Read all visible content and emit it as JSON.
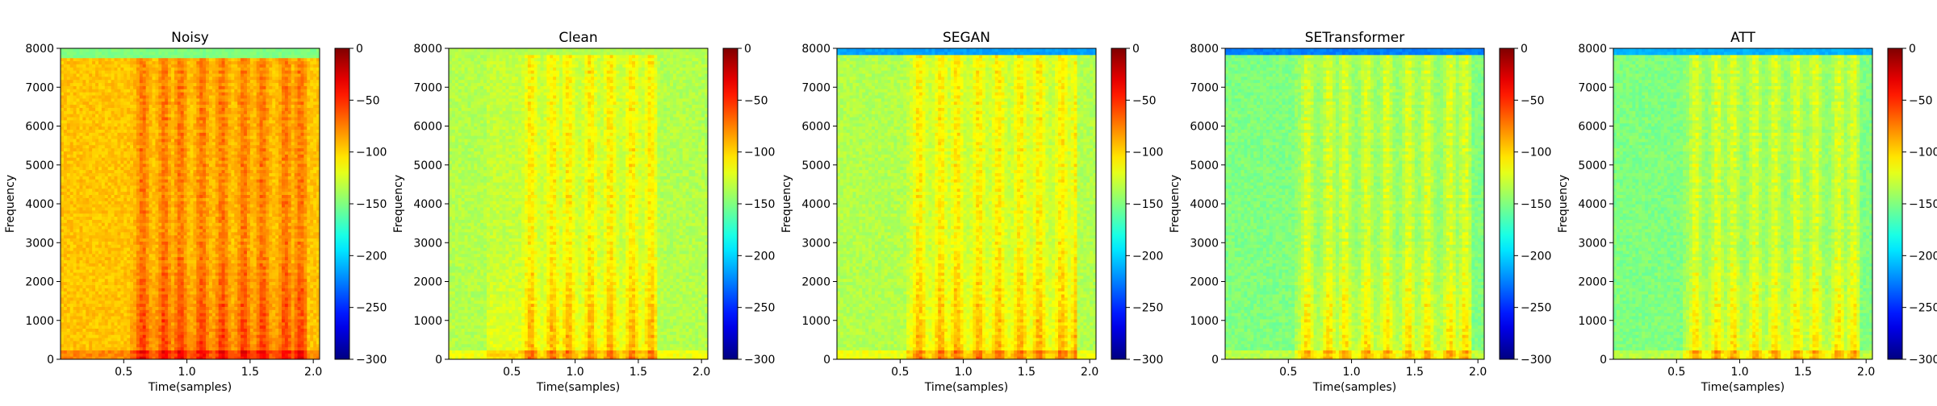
{
  "colormap": "jet",
  "chart_data": [
    {
      "type": "heatmap",
      "title": "Noisy",
      "xlabel": "Time(samples)",
      "ylabel": "Frequency",
      "xlim": [
        0,
        2.05
      ],
      "ylim": [
        0,
        8000
      ],
      "x_ticks": [
        "0.5",
        "1.0",
        "1.5",
        "2.0"
      ],
      "y_ticks": [
        "0",
        "1000",
        "2000",
        "3000",
        "4000",
        "5000",
        "6000",
        "7000",
        "8000"
      ],
      "colorbar": {
        "range": [
          -300,
          0
        ],
        "ticks": [
          "0",
          "−50",
          "−100",
          "−150",
          "−200",
          "−250",
          "−300"
        ]
      },
      "background_level": -95,
      "speech_region": [
        0.55,
        1.95
      ],
      "top_band": {
        "from": 7800,
        "level": -150
      }
    },
    {
      "type": "heatmap",
      "title": "Clean",
      "xlabel": "Time(samples)",
      "ylabel": "Frequency",
      "xlim": [
        0,
        2.05
      ],
      "ylim": [
        0,
        8000
      ],
      "x_ticks": [
        "0.5",
        "1.0",
        "1.5",
        "2.0"
      ],
      "y_ticks": [
        "0",
        "1000",
        "2000",
        "3000",
        "4000",
        "5000",
        "6000",
        "7000",
        "8000"
      ],
      "colorbar": {
        "range": [
          -300,
          0
        ],
        "ticks": [
          "0",
          "−50",
          "−100",
          "−150",
          "−200",
          "−250",
          "−300"
        ]
      },
      "background_level": -130,
      "speech_region": [
        0.3,
        1.65
      ],
      "top_band": {
        "from": 7850,
        "level": -135
      }
    },
    {
      "type": "heatmap",
      "title": "SEGAN",
      "xlabel": "Time(samples)",
      "ylabel": "Frequency",
      "xlim": [
        0,
        2.05
      ],
      "ylim": [
        0,
        8000
      ],
      "x_ticks": [
        "0.5",
        "1.0",
        "1.5",
        "2.0"
      ],
      "y_ticks": [
        "0",
        "1000",
        "2000",
        "3000",
        "4000",
        "5000",
        "6000",
        "7000",
        "8000"
      ],
      "colorbar": {
        "range": [
          -300,
          0
        ],
        "ticks": [
          "0",
          "−50",
          "−100",
          "−150",
          "−200",
          "−250",
          "−300"
        ]
      },
      "background_level": -130,
      "speech_region": [
        0.55,
        1.9
      ],
      "top_band": {
        "from": 7850,
        "level": -215
      }
    },
    {
      "type": "heatmap",
      "title": "SETransformer",
      "xlabel": "Time(samples)",
      "ylabel": "Frequency",
      "xlim": [
        0,
        2.05
      ],
      "ylim": [
        0,
        8000
      ],
      "x_ticks": [
        "0.5",
        "1.0",
        "1.5",
        "2.0"
      ],
      "y_ticks": [
        "0",
        "1000",
        "2000",
        "3000",
        "4000",
        "5000",
        "6000",
        "7000",
        "8000"
      ],
      "colorbar": {
        "range": [
          -300,
          0
        ],
        "ticks": [
          "0",
          "−50",
          "−100",
          "−150",
          "−200",
          "−250",
          "−300"
        ]
      },
      "background_level": -145,
      "speech_region": [
        0.55,
        1.95
      ],
      "top_band": {
        "from": 7850,
        "level": -225
      }
    },
    {
      "type": "heatmap",
      "title": "ATT",
      "xlabel": "Time(samples)",
      "ylabel": "Frequency",
      "xlim": [
        0,
        2.05
      ],
      "ylim": [
        0,
        8000
      ],
      "x_ticks": [
        "0.5",
        "1.0",
        "1.5",
        "2.0"
      ],
      "y_ticks": [
        "0",
        "1000",
        "2000",
        "3000",
        "4000",
        "5000",
        "6000",
        "7000",
        "8000"
      ],
      "colorbar": {
        "range": [
          -300,
          0
        ],
        "ticks": [
          "0",
          "−50",
          "−100",
          "−150",
          "−200",
          "−250",
          "−300"
        ]
      },
      "background_level": -145,
      "speech_region": [
        0.55,
        1.95
      ],
      "top_band": {
        "from": 7850,
        "level": -210
      }
    }
  ]
}
